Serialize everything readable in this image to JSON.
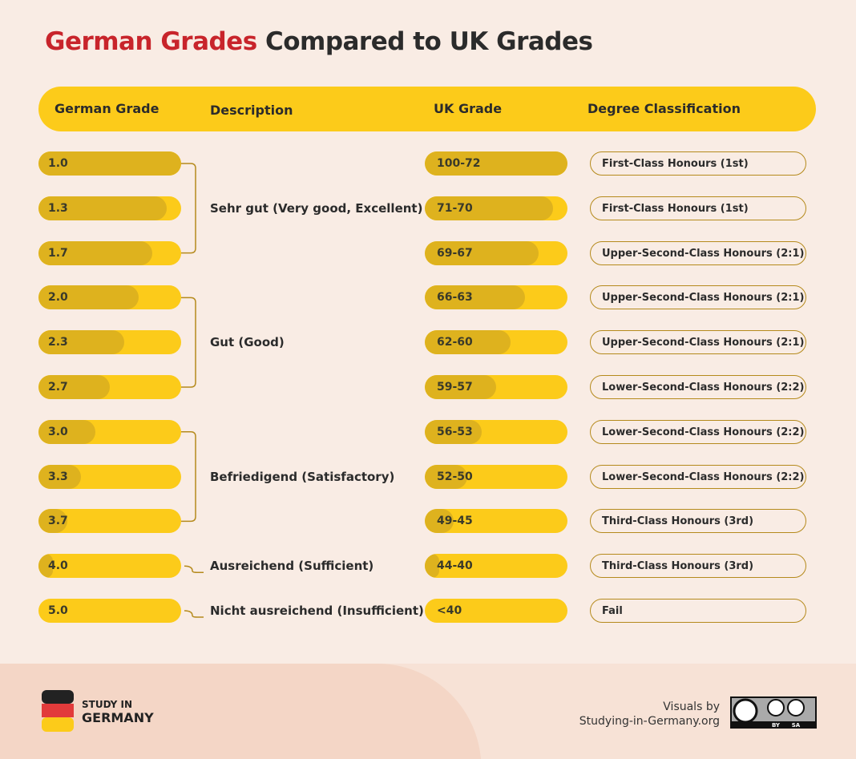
{
  "header": {
    "title_highlight": "German Grades",
    "title_rest": "Compared to UK Grades"
  },
  "table": {
    "columns": [
      "German Grade",
      "Description",
      "UK Grade",
      "Degree Classification"
    ],
    "groups": [
      {
        "description": "Sehr gut (Very good, Excellent)",
        "rows": [
          {
            "german": "1.0",
            "uk": "100-72",
            "classification": "First-Class Honours (1st)"
          },
          {
            "german": "1.3",
            "uk": "71-70",
            "classification": "First-Class Honours (1st)"
          },
          {
            "german": "1.7",
            "uk": "69-67",
            "classification": "Upper-Second-Class Honours (2:1)"
          }
        ]
      },
      {
        "description": "Gut (Good)",
        "rows": [
          {
            "german": "2.0",
            "uk": "66-63",
            "classification": "Upper-Second-Class Honours (2:1)"
          },
          {
            "german": "2.3",
            "uk": "62-60",
            "classification": "Upper-Second-Class Honours (2:1)"
          },
          {
            "german": "2.7",
            "uk": "59-57",
            "classification": "Lower-Second-Class Honours (2:2)"
          }
        ]
      },
      {
        "description": "Befriedigend (Satisfactory)",
        "rows": [
          {
            "german": "3.0",
            "uk": "56-53",
            "classification": "Lower-Second-Class Honours (2:2)"
          },
          {
            "german": "3.3",
            "uk": "52-50",
            "classification": "Lower-Second-Class Honours (2:2)"
          },
          {
            "german": "3.7",
            "uk": "49-45",
            "classification": "Third-Class Honours (3rd)"
          }
        ]
      },
      {
        "description": "Ausreichend (Sufficient)",
        "rows": [
          {
            "german": "4.0",
            "uk": "44-40",
            "classification": "Third-Class Honours (3rd)"
          }
        ]
      },
      {
        "description": "Nicht ausreichend (Insufficient)",
        "rows": [
          {
            "german": "5.0",
            "uk": "<40",
            "classification": "Fail"
          }
        ]
      }
    ]
  },
  "footer": {
    "logo_line1": "STUDY IN",
    "logo_line2": "GERMANY",
    "credit_line1": "Visuals by",
    "credit_line2": "Studying-in-Germany.org",
    "license": [
      "BY",
      "SA"
    ]
  }
}
